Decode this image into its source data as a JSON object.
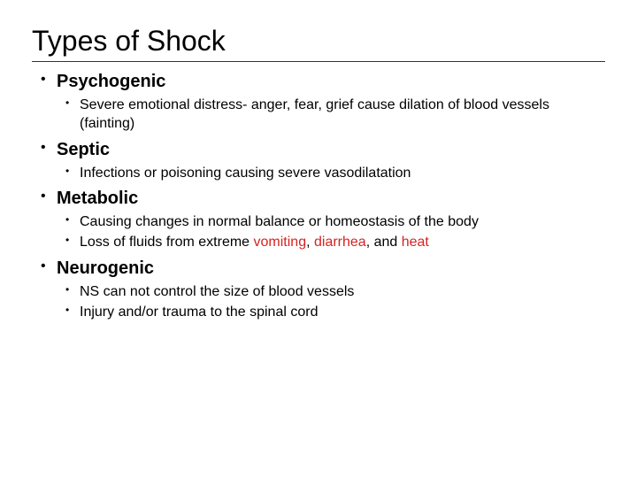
{
  "slide": {
    "title": "Types of Shock",
    "title_fontsize": 32,
    "title_color": "#000000",
    "title_border_color": "#333333",
    "background_color": "#ffffff",
    "bullet_color": "#000000",
    "body_color": "#000000",
    "highlight_color": "#d62222",
    "level1_fontsize": 20,
    "level2_fontsize": 16,
    "items": [
      {
        "heading": "Psychogenic",
        "sub": [
          {
            "text": "Severe emotional distress- anger, fear, grief cause dilation of blood vessels (fainting)"
          }
        ]
      },
      {
        "heading": "Septic",
        "sub": [
          {
            "text": "Infections or poisoning causing severe vasodilatation"
          }
        ]
      },
      {
        "heading": "Metabolic",
        "sub": [
          {
            "text": "Causing changes in normal balance or homeostasis of the body"
          },
          {
            "prefix": "Loss of fluids from extreme ",
            "hl1": "vomiting",
            "mid1": ", ",
            "hl2": "diarrhea",
            "mid2": ", and ",
            "hl3": "heat"
          }
        ]
      },
      {
        "heading": "Neurogenic",
        "sub": [
          {
            "text": "NS can not control the size of blood vessels"
          },
          {
            "text": "Injury and/or trauma to the spinal cord"
          }
        ]
      }
    ]
  }
}
